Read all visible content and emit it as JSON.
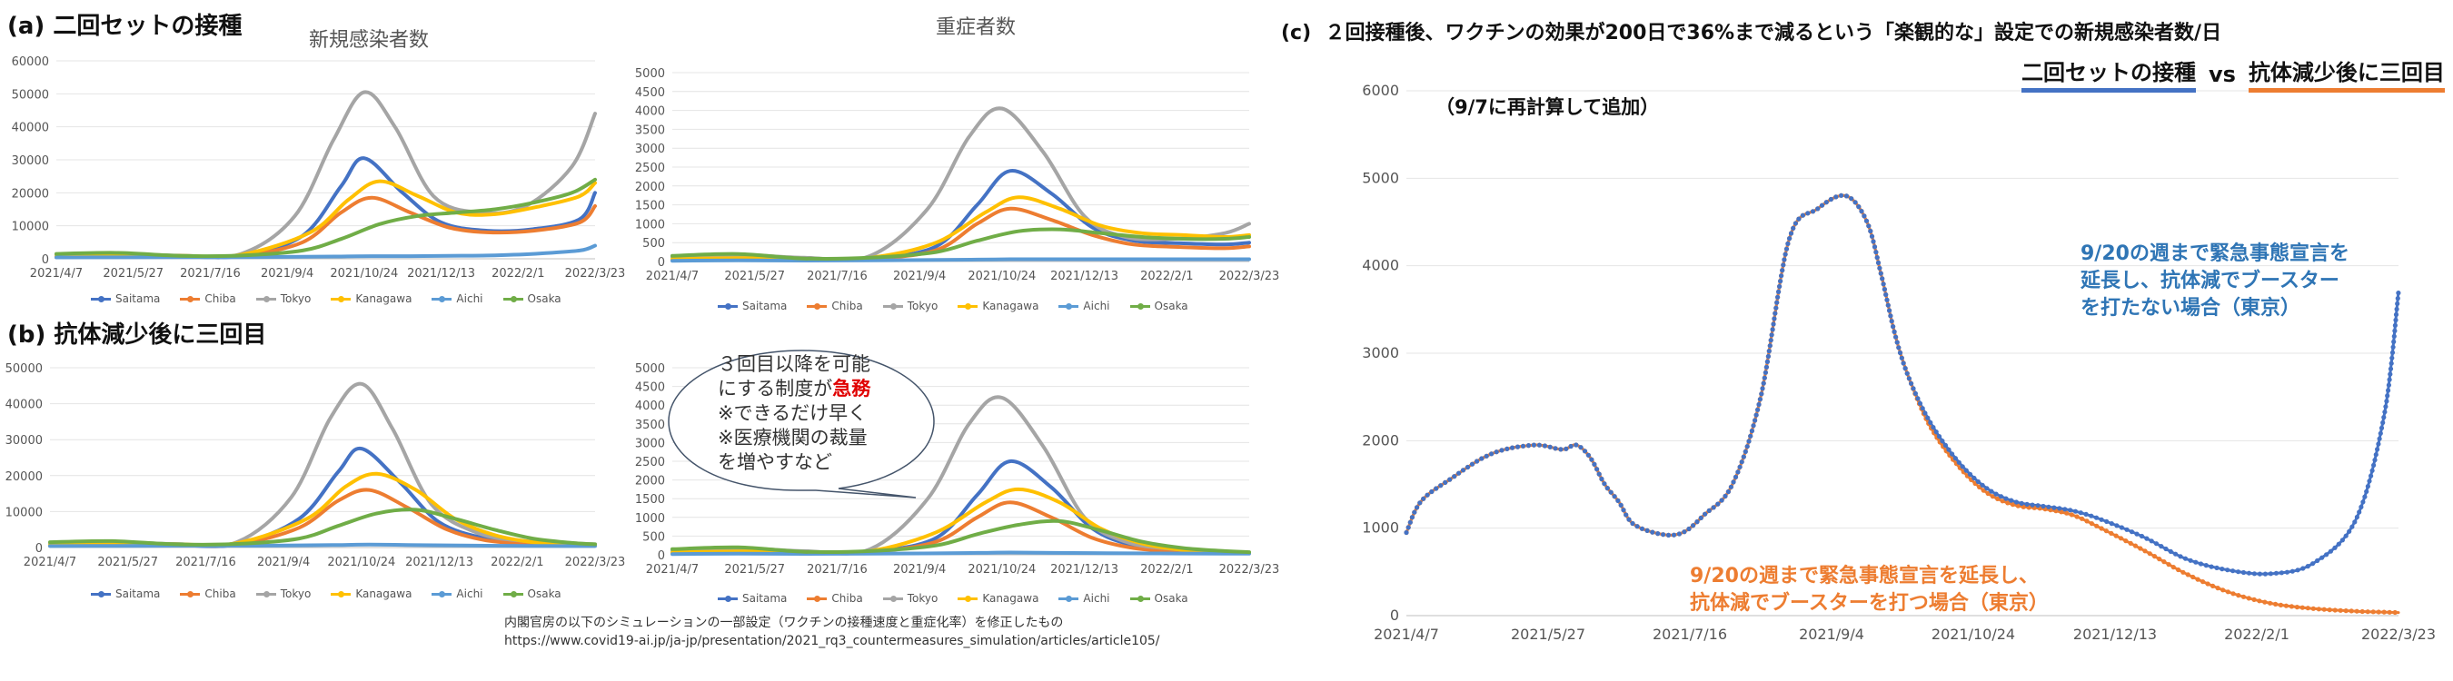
{
  "labels": {
    "a": "(a) 二回セットの接種",
    "b": "(b) 抗体減少後に三回目",
    "c": "(c)  ２回接種後、ワクチンの効果が200日で36%まで減るという「楽観的な」設定での新規感染者数/日",
    "c_legend_blue": "二回セットの接種",
    "c_legend_vs": "vs",
    "c_legend_orange": "抗体減少後に三回目",
    "c_recalc": "（9/7に再計算して追加）",
    "bubble_line1": "３回目以降を可能",
    "bubble_line2_pre": "にする制度が",
    "bubble_line2_urgent": "急務",
    "bubble_line3": "※できるだけ早く",
    "bubble_line4": "※医療機関の裁量",
    "bubble_line5": "を増やすなど",
    "annot_blue": "9/20の週まで緊急事態宣言を延長し、抗体減でブースターを打たない場合（東京）",
    "annot_orange_1": "9/20の週まで緊急事態宣言を延長し、",
    "annot_orange_2": "抗体減でブースターを打つ場合（東京）",
    "source_1": "内閣官房の以下のシミュレーションの一部設定（ワクチンの接種速度と重症化率）を修正したもの",
    "source_2": "https://www.covid19-ai.jp/ja-jp/presentation/2021_rq3_countermeasures_simulation/articles/article105/"
  },
  "colors": {
    "Saitama": "#4472c4",
    "Chiba": "#ed7d31",
    "Tokyo": "#a5a5a5",
    "Kanagawa": "#ffc000",
    "Aichi": "#5b9bd5",
    "Osaka": "#70ad47",
    "blue": "#4472c4",
    "orange": "#ed7d31"
  },
  "chart_data": [
    {
      "id": "a1",
      "type": "line",
      "title": "新規感染者数",
      "categories": [
        "2021/4/7",
        "2021/5/27",
        "2021/7/16",
        "2021/9/4",
        "2021/10/24",
        "2021/12/13",
        "2022/2/1",
        "2022/3/23"
      ],
      "yticks": [
        0,
        10000,
        20000,
        30000,
        40000,
        50000,
        60000
      ],
      "ylim": [
        0,
        60000
      ],
      "series": [
        {
          "name": "Saitama",
          "values": [
            500,
            600,
            700,
            900,
            7000,
            22000,
            30500,
            20000,
            11000,
            8500,
            9000,
            12000,
            20000
          ],
          "x": [
            0,
            0.8,
            1.6,
            2.4,
            3.2,
            3.7,
            4.0,
            4.5,
            5.0,
            5.6,
            6.2,
            6.8,
            7.0
          ]
        },
        {
          "name": "Chiba",
          "values": [
            500,
            600,
            700,
            900,
            5000,
            14000,
            18500,
            14000,
            9500,
            8000,
            8500,
            11000,
            16000
          ],
          "x": [
            0,
            0.8,
            1.6,
            2.4,
            3.2,
            3.7,
            4.1,
            4.6,
            5.1,
            5.6,
            6.2,
            6.8,
            7.0
          ]
        },
        {
          "name": "Tokyo",
          "values": [
            1200,
            1500,
            1000,
            1500,
            13000,
            36000,
            50500,
            40000,
            19000,
            14000,
            16000,
            28000,
            44000
          ],
          "x": [
            0,
            0.8,
            1.6,
            2.4,
            3.1,
            3.6,
            4.0,
            4.4,
            4.9,
            5.5,
            6.1,
            6.7,
            7.0
          ]
        },
        {
          "name": "Kanagawa",
          "values": [
            700,
            800,
            900,
            1200,
            8000,
            18000,
            23500,
            19000,
            14000,
            13500,
            16000,
            19000,
            23000
          ],
          "x": [
            0,
            0.8,
            1.6,
            2.4,
            3.3,
            3.8,
            4.2,
            4.7,
            5.2,
            5.7,
            6.3,
            6.8,
            7.0
          ]
        },
        {
          "name": "Aichi",
          "values": [
            400,
            450,
            500,
            500,
            600,
            700,
            800,
            800,
            900,
            1000,
            1500,
            2500,
            4000
          ],
          "x": [
            0,
            0.8,
            1.6,
            2.4,
            3.2,
            3.7,
            4.1,
            4.6,
            5.1,
            5.6,
            6.2,
            6.8,
            7.0
          ]
        },
        {
          "name": "Osaka",
          "values": [
            1500,
            1800,
            900,
            1000,
            2500,
            6000,
            10500,
            13000,
            14000,
            15000,
            17000,
            20000,
            24000
          ],
          "x": [
            0,
            0.8,
            1.6,
            2.4,
            3.2,
            3.7,
            4.2,
            4.7,
            5.2,
            5.7,
            6.2,
            6.7,
            7.0
          ]
        }
      ]
    },
    {
      "id": "a2",
      "type": "line",
      "title": "重症者数",
      "categories": [
        "2021/4/7",
        "2021/5/27",
        "2021/7/16",
        "2021/9/4",
        "2021/10/24",
        "2021/12/13",
        "2022/2/1",
        "2022/3/23"
      ],
      "yticks": [
        0,
        500,
        1000,
        1500,
        2000,
        2500,
        3000,
        3500,
        4000,
        4500,
        5000
      ],
      "ylim": [
        0,
        5000
      ],
      "series": [
        {
          "name": "Saitama",
          "values": [
            50,
            80,
            60,
            80,
            400,
            1500,
            2400,
            1800,
            900,
            550,
            480,
            450,
            500
          ],
          "x": [
            0,
            0.8,
            1.6,
            2.4,
            3.2,
            3.7,
            4.1,
            4.6,
            5.1,
            5.6,
            6.2,
            6.7,
            7.0
          ]
        },
        {
          "name": "Chiba",
          "values": [
            40,
            60,
            50,
            70,
            300,
            1000,
            1400,
            1100,
            700,
            450,
            380,
            350,
            400
          ],
          "x": [
            0,
            0.8,
            1.6,
            2.4,
            3.2,
            3.7,
            4.1,
            4.6,
            5.1,
            5.6,
            6.2,
            6.7,
            7.0
          ]
        },
        {
          "name": "Tokyo",
          "values": [
            120,
            180,
            100,
            150,
            1400,
            3300,
            4050,
            2900,
            1200,
            650,
            600,
            750,
            1000
          ],
          "x": [
            0,
            0.8,
            1.6,
            2.4,
            3.1,
            3.6,
            4.0,
            4.5,
            5.0,
            5.5,
            6.1,
            6.7,
            7.0
          ]
        },
        {
          "name": "Kanagawa",
          "values": [
            60,
            90,
            70,
            100,
            500,
            1300,
            1700,
            1400,
            950,
            750,
            700,
            650,
            700
          ],
          "x": [
            0,
            0.8,
            1.6,
            2.4,
            3.2,
            3.8,
            4.2,
            4.7,
            5.2,
            5.7,
            6.2,
            6.7,
            7.0
          ]
        },
        {
          "name": "Aichi",
          "values": [
            20,
            30,
            25,
            30,
            40,
            50,
            60,
            60,
            60,
            60,
            60,
            60,
            60
          ],
          "x": [
            0,
            0.8,
            1.6,
            2.4,
            3.2,
            3.7,
            4.1,
            4.6,
            5.1,
            5.6,
            6.2,
            6.7,
            7.0
          ]
        },
        {
          "name": "Osaka",
          "values": [
            150,
            200,
            80,
            100,
            250,
            550,
            800,
            850,
            750,
            650,
            600,
            600,
            650
          ],
          "x": [
            0,
            0.8,
            1.6,
            2.4,
            3.2,
            3.7,
            4.2,
            4.7,
            5.2,
            5.7,
            6.2,
            6.7,
            7.0
          ]
        }
      ]
    },
    {
      "id": "b1",
      "type": "line",
      "title": "",
      "categories": [
        "2021/4/7",
        "2021/5/27",
        "2021/7/16",
        "2021/9/4",
        "2021/10/24",
        "2021/12/13",
        "2022/2/1",
        "2022/3/23"
      ],
      "yticks": [
        0,
        10000,
        20000,
        30000,
        40000,
        50000
      ],
      "ylim": [
        0,
        50000
      ],
      "series": [
        {
          "name": "Saitama",
          "values": [
            500,
            600,
            700,
            900,
            8000,
            21000,
            27500,
            18000,
            7000,
            2500,
            1200,
            800,
            600
          ],
          "x": [
            0,
            0.8,
            1.6,
            2.4,
            3.2,
            3.7,
            4.0,
            4.5,
            5.0,
            5.6,
            6.2,
            6.7,
            7.0
          ]
        },
        {
          "name": "Chiba",
          "values": [
            500,
            600,
            700,
            900,
            5500,
            13000,
            16000,
            11000,
            5000,
            2000,
            1000,
            700,
            500
          ],
          "x": [
            0,
            0.8,
            1.6,
            2.4,
            3.2,
            3.7,
            4.1,
            4.6,
            5.1,
            5.6,
            6.2,
            6.7,
            7.0
          ]
        },
        {
          "name": "Tokyo",
          "values": [
            1200,
            1500,
            1000,
            1500,
            14000,
            36000,
            45500,
            33000,
            12000,
            4000,
            1800,
            1200,
            900
          ],
          "x": [
            0,
            0.8,
            1.6,
            2.4,
            3.1,
            3.6,
            4.0,
            4.4,
            4.9,
            5.5,
            6.1,
            6.7,
            7.0
          ]
        },
        {
          "name": "Kanagawa",
          "values": [
            700,
            800,
            900,
            1200,
            8000,
            17000,
            20500,
            16000,
            8000,
            3500,
            1500,
            1000,
            700
          ],
          "x": [
            0,
            0.8,
            1.6,
            2.4,
            3.3,
            3.8,
            4.2,
            4.7,
            5.2,
            5.7,
            6.2,
            6.7,
            7.0
          ]
        },
        {
          "name": "Aichi",
          "values": [
            400,
            450,
            500,
            500,
            600,
            700,
            800,
            700,
            600,
            500,
            450,
            400,
            400
          ],
          "x": [
            0,
            0.8,
            1.6,
            2.4,
            3.2,
            3.7,
            4.1,
            4.6,
            5.1,
            5.6,
            6.2,
            6.7,
            7.0
          ]
        },
        {
          "name": "Osaka",
          "values": [
            1500,
            1800,
            900,
            1000,
            2500,
            6000,
            9500,
            10500,
            8000,
            5000,
            2500,
            1300,
            900
          ],
          "x": [
            0,
            0.8,
            1.6,
            2.4,
            3.2,
            3.7,
            4.2,
            4.7,
            5.2,
            5.7,
            6.2,
            6.7,
            7.0
          ]
        }
      ]
    },
    {
      "id": "b2",
      "type": "line",
      "title": "",
      "categories": [
        "2021/4/7",
        "2021/5/27",
        "2021/7/16",
        "2021/9/4",
        "2021/10/24",
        "2021/12/13",
        "2022/2/1",
        "2022/3/23"
      ],
      "yticks": [
        0,
        500,
        1000,
        1500,
        2000,
        2500,
        3000,
        3500,
        4000,
        4500,
        5000
      ],
      "ylim": [
        0,
        5000
      ],
      "series": [
        {
          "name": "Saitama",
          "values": [
            50,
            80,
            60,
            80,
            450,
            1600,
            2500,
            1800,
            700,
            250,
            100,
            60,
            50
          ],
          "x": [
            0,
            0.8,
            1.6,
            2.4,
            3.2,
            3.7,
            4.1,
            4.6,
            5.1,
            5.6,
            6.2,
            6.7,
            7.0
          ]
        },
        {
          "name": "Chiba",
          "values": [
            40,
            60,
            50,
            70,
            350,
            1000,
            1400,
            1000,
            450,
            180,
            80,
            50,
            40
          ],
          "x": [
            0,
            0.8,
            1.6,
            2.4,
            3.2,
            3.7,
            4.1,
            4.6,
            5.1,
            5.6,
            6.2,
            6.7,
            7.0
          ]
        },
        {
          "name": "Tokyo",
          "values": [
            120,
            180,
            100,
            150,
            1500,
            3500,
            4200,
            2900,
            1000,
            350,
            150,
            80,
            60
          ],
          "x": [
            0,
            0.8,
            1.6,
            2.4,
            3.1,
            3.6,
            4.0,
            4.5,
            5.0,
            5.5,
            6.1,
            6.7,
            7.0
          ]
        },
        {
          "name": "Kanagawa",
          "values": [
            60,
            90,
            70,
            100,
            600,
            1400,
            1750,
            1400,
            700,
            300,
            130,
            80,
            60
          ],
          "x": [
            0,
            0.8,
            1.6,
            2.4,
            3.2,
            3.8,
            4.2,
            4.7,
            5.2,
            5.7,
            6.2,
            6.7,
            7.0
          ]
        },
        {
          "name": "Aichi",
          "values": [
            20,
            30,
            25,
            30,
            40,
            50,
            60,
            50,
            45,
            40,
            35,
            30,
            30
          ],
          "x": [
            0,
            0.8,
            1.6,
            2.4,
            3.2,
            3.7,
            4.1,
            4.6,
            5.1,
            5.6,
            6.2,
            6.7,
            7.0
          ]
        },
        {
          "name": "Osaka",
          "values": [
            150,
            200,
            80,
            100,
            250,
            550,
            800,
            900,
            650,
            350,
            180,
            100,
            70
          ],
          "x": [
            0,
            0.8,
            1.6,
            2.4,
            3.2,
            3.7,
            4.2,
            4.7,
            5.2,
            5.7,
            6.2,
            6.7,
            7.0
          ]
        }
      ]
    },
    {
      "id": "c",
      "type": "line",
      "title": "",
      "categories": [
        "2021/4/7",
        "2021/5/27",
        "2021/7/16",
        "2021/9/4",
        "2021/10/24",
        "2021/12/13",
        "2022/2/1",
        "2022/3/23"
      ],
      "yticks": [
        0,
        1000,
        2000,
        3000,
        4000,
        5000,
        6000
      ],
      "ylim": [
        0,
        6000
      ],
      "series": [
        {
          "name": "二回セットの接種",
          "color_key": "blue",
          "x": [
            0,
            0.1,
            0.3,
            0.6,
            0.9,
            1.1,
            1.2,
            1.3,
            1.4,
            1.5,
            1.6,
            1.8,
            1.95,
            2.1,
            2.3,
            2.5,
            2.7,
            2.9,
            3.1,
            3.25,
            3.35,
            3.45,
            3.55,
            3.7,
            3.9,
            4.1,
            4.3,
            4.5,
            4.7,
            4.9,
            5.2,
            5.5,
            5.8,
            6.1,
            6.4,
            6.7,
            6.9,
            7.0
          ],
          "values": [
            950,
            1300,
            1550,
            1850,
            1950,
            1900,
            1950,
            1800,
            1500,
            1300,
            1050,
            930,
            950,
            1150,
            1500,
            2500,
            4300,
            4650,
            4800,
            4500,
            3900,
            3200,
            2700,
            2200,
            1750,
            1450,
            1300,
            1250,
            1200,
            1100,
            900,
            650,
            520,
            480,
            600,
            1100,
            2300,
            3700
          ]
        },
        {
          "name": "抗体減少後に三回目",
          "color_key": "orange",
          "x": [
            0,
            0.1,
            0.3,
            0.6,
            0.9,
            1.1,
            1.2,
            1.3,
            1.4,
            1.5,
            1.6,
            1.8,
            1.95,
            2.1,
            2.3,
            2.5,
            2.7,
            2.9,
            3.1,
            3.25,
            3.35,
            3.45,
            3.55,
            3.7,
            3.9,
            4.1,
            4.3,
            4.5,
            4.7,
            4.9,
            5.2,
            5.5,
            5.8,
            6.1,
            6.4,
            6.7,
            6.9,
            7.0
          ],
          "values": [
            950,
            1300,
            1550,
            1850,
            1950,
            1900,
            1950,
            1800,
            1500,
            1300,
            1050,
            930,
            950,
            1150,
            1500,
            2500,
            4300,
            4650,
            4800,
            4500,
            3900,
            3200,
            2700,
            2150,
            1700,
            1400,
            1260,
            1220,
            1150,
            1000,
            750,
            480,
            270,
            140,
            80,
            50,
            40,
            35
          ]
        }
      ]
    }
  ]
}
